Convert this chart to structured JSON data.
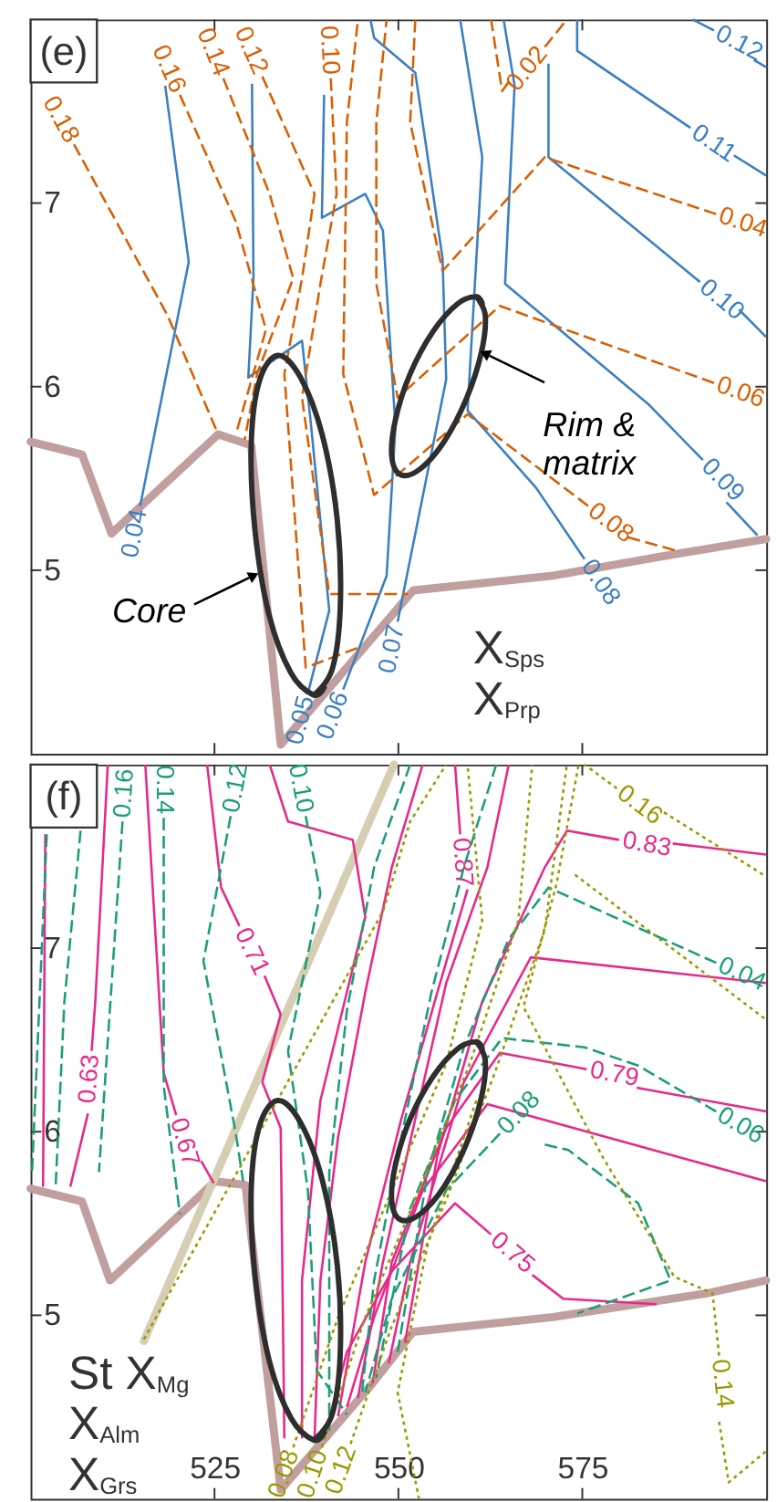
{
  "chart_data": [
    {
      "type": "line",
      "title": "(e)",
      "xlim": [
        500,
        600
      ],
      "ylim": [
        4,
        8
      ],
      "xticks": [
        525,
        550,
        575
      ],
      "yticks": [
        5,
        6,
        7
      ],
      "tick_labels": "y",
      "annotations": [
        {
          "text": "Core",
          "x": 530.8,
          "y": 4.98
        },
        {
          "text": "Rim & matrix",
          "x": 561.3,
          "y": 6.19
        },
        "X$_{Sps}$",
        "X$_{Prp}$"
      ],
      "series": [
        {
          "color": "#c29f9f",
          "x": [
            500,
            507,
            511,
            525.5,
            530,
            534,
            552,
            571,
            585,
            600
          ],
          "values": [
            5.7,
            5.63,
            5.2,
            5.74,
            5.68,
            4.05,
            4.89,
            4.97,
            5.07,
            5.17
          ]
        },
        {
          "name": "0.04",
          "color": "#3b7fc0",
          "line_style": "solid",
          "x": [
            514.9,
            521.5,
            518.3
          ],
          "values": [
            5.35,
            6.68,
            7.64
          ]
        },
        {
          "name": "0.05",
          "color": "#3b7fc0",
          "line_style": "solid",
          "x": [
            537.7,
            540.6,
            538.1,
            536.9,
            529.6,
            530.3,
            530.1
          ],
          "values": [
            4.33,
            4.78,
            5.8,
            6.25,
            6.05,
            6.59,
            7.65
          ]
        },
        {
          "name": "0.06",
          "color": "#3b7fc0",
          "line_style": "solid",
          "x": [
            542.5,
            548.4,
            549.6,
            547.9,
            545.5,
            539.6,
            539.9
          ],
          "values": [
            4.35,
            4.97,
            5.78,
            6.85,
            7.05,
            6.92,
            7.59
          ]
        },
        {
          "name": "0.07",
          "color": "#3b7fc0",
          "line_style": "solid",
          "x": [
            549.9,
            556.5,
            556,
            552.3,
            546.7,
            546.2
          ],
          "values": [
            4.72,
            6.04,
            6.7,
            7.71,
            7.9,
            8
          ]
        },
        {
          "name": "0.08",
          "color": "#3b7fc0",
          "line_style": "solid",
          "x": [
            575.3,
            568.7,
            559.4,
            561.4,
            558.4
          ],
          "values": [
            5.06,
            5.45,
            5.87,
            7.25,
            8
          ]
        },
        {
          "name": "0.09",
          "color": "#3b7fc0",
          "line_style": "solid",
          "x": [
            591.4,
            584.1,
            564.5,
            565.8,
            564.3
          ],
          "values": [
            5.6,
            5.9,
            6.56,
            7.64,
            8
          ]
        },
        {
          "color": "#3b7fc0",
          "line_style": "solid",
          "x": [
            594.6,
            598.8
          ],
          "values": [
            5.37,
            5.19
          ]
        },
        {
          "name": "0.10",
          "color": "#3b7fc0",
          "line_style": "solid",
          "x": [
            591,
            570.4,
            570.4
          ],
          "values": [
            6.57,
            7.25,
            7.76
          ]
        },
        {
          "color": "#3b7fc0",
          "line_style": "solid",
          "x": [
            596.3,
            600
          ],
          "values": [
            6.42,
            6.27
          ]
        },
        {
          "name": "0.11",
          "color": "#3b7fc0",
          "line_style": "solid",
          "x": [
            589.7,
            574.3,
            574.3
          ],
          "values": [
            7.41,
            7.83,
            8
          ]
        },
        {
          "color": "#3b7fc0",
          "line_style": "solid",
          "x": [
            595.6,
            600
          ],
          "values": [
            7.26,
            7.15
          ]
        },
        {
          "name": "0.12",
          "color": "#3b7fc0",
          "line_style": "solid",
          "x": [
            592.9,
            590
          ],
          "values": [
            7.94,
            8
          ]
        },
        {
          "color": "#3b7fc0",
          "line_style": "solid",
          "x": [
            598.3,
            600
          ],
          "values": [
            7.78,
            7.74
          ]
        },
        {
          "name": "0.18",
          "color": "#d95f02",
          "line_style": "dashed",
          "x": [
            505.9,
            518.6,
            525.4
          ],
          "values": [
            7.32,
            6.39,
            5.75
          ]
        },
        {
          "name": "0.16",
          "color": "#d95f02",
          "line_style": "dashed",
          "x": [
            520.3,
            527.9,
            532,
            527.9
          ],
          "values": [
            7.59,
            6.9,
            6.31,
            5.74
          ]
        },
        {
          "name": "0.14",
          "color": "#d95f02",
          "line_style": "dashed",
          "x": [
            526.2,
            532.5,
            535.7,
            530.8,
            529.1
          ],
          "values": [
            7.68,
            7.05,
            6.59,
            6.07,
            5.71
          ]
        },
        {
          "name": "0.12",
          "color": "#d95f02",
          "line_style": "dashed",
          "x": [
            531.5,
            538.6,
            536.9,
            534.5,
            537.4,
            544.7
          ],
          "values": [
            7.69,
            7.05,
            6.59,
            6.07,
            4.47,
            4.58
          ]
        },
        {
          "name": "0.10",
          "color": "#d95f02",
          "line_style": "dashed",
          "x": [
            540.8,
            541.6,
            539.4,
            536.9,
            540.6,
            551.3
          ],
          "values": [
            7.68,
            7.05,
            6.56,
            5.94,
            4.87,
            4.87
          ]
        },
        {
          "name": "0.08",
          "color": "#d95f02",
          "line_style": "dashed",
          "x": [
            575.8,
            559.4,
            546.7,
            542.5,
            543,
            544.5
          ],
          "values": [
            5.35,
            5.85,
            5.41,
            6.07,
            7.44,
            8
          ]
        },
        {
          "color": "#d95f02",
          "line_style": "dashed",
          "x": [
            581.2,
            588.3
          ],
          "values": [
            5.18,
            5.1
          ]
        },
        {
          "name": "0.06",
          "color": "#d95f02",
          "line_style": "dashed",
          "x": [
            592.9,
            563.8,
            549.9,
            547,
            547,
            548.4
          ],
          "values": [
            6.02,
            6.44,
            5.94,
            6.56,
            7.44,
            8
          ]
        },
        {
          "name": "0.04",
          "color": "#d95f02",
          "line_style": "dashed",
          "x": [
            593.2,
            569.9,
            556,
            551.6,
            552.3
          ],
          "values": [
            6.94,
            7.25,
            6.63,
            7.44,
            8
          ]
        },
        {
          "name": "0.02",
          "color": "#d95f02",
          "line_style": "dashed",
          "x": [
            569.9,
            572.9
          ],
          "values": [
            7.85,
            8
          ]
        },
        {
          "color": "#d95f02",
          "line_style": "dashed",
          "x": [
            565,
            564.1,
            562.6
          ],
          "values": [
            7.66,
            7.61,
            8
          ]
        },
        {
          "color": "#2e2e2e",
          "x": [
            538.5,
            541,
            542.1,
            541.7,
            539.7,
            536.7,
            533.6,
            531.1,
            530,
            530.5,
            532.4,
            535.4,
            538.5,
            539.9
          ],
          "values": [
            4.32,
            4.46,
            4.8,
            5.27,
            5.73,
            6.05,
            6.17,
            6.03,
            5.69,
            5.22,
            4.76,
            4.44,
            4.32,
            4.36
          ]
        },
        {
          "color": "#2e2e2e",
          "x": [
            560.6,
            561.8,
            561.3,
            559.3,
            556.2,
            552.9,
            550.3,
            549.1,
            549.6,
            551.6,
            554.7,
            558,
            560.6,
            561.4
          ],
          "values": [
            6.49,
            6.39,
            6.19,
            5.94,
            5.7,
            5.55,
            5.52,
            5.62,
            5.82,
            6.07,
            6.3,
            6.45,
            6.49,
            6.45
          ]
        }
      ]
    },
    {
      "type": "line",
      "title": "(f)",
      "xlim": [
        500,
        600
      ],
      "ylim": [
        4,
        8
      ],
      "xticks": [
        525,
        550,
        575
      ],
      "yticks": [
        5,
        6,
        7
      ],
      "annotations": [
        "St X$_{Mg}$",
        "X$_{Alm}$",
        "X$_{Grs}$"
      ],
      "series": [
        {
          "color": "#c29f9f",
          "x": [
            500,
            507,
            510.8,
            525.1,
            529.2,
            534,
            546.5,
            552,
            571,
            592,
            600
          ],
          "values": [
            5.69,
            5.62,
            5.19,
            5.73,
            5.71,
            4.05,
            4.63,
            4.91,
            4.99,
            5.12,
            5.19
          ]
        },
        {
          "color": "#d6ceb2",
          "x": [
            515.4,
            549.4
          ],
          "values": [
            4.86,
            8
          ]
        },
        {
          "color": "#e7298a",
          "line_style": "solid",
          "x": [
            502,
            501.7
          ],
          "values": [
            7.62,
            5.7
          ]
        },
        {
          "name": "0.63",
          "color": "#e7298a",
          "line_style": "solid",
          "x": [
            508.3,
            508.8,
            510.5
          ],
          "values": [
            6.44,
            6.71,
            8
          ]
        },
        {
          "color": "#e7298a",
          "line_style": "solid",
          "x": [
            507.8,
            505.4
          ],
          "values": [
            6.1,
            5.7
          ]
        },
        {
          "name": "0.67",
          "color": "#e7298a",
          "line_style": "solid",
          "x": [
            519.8,
            518.1,
            515.6
          ],
          "values": [
            6.09,
            6.32,
            8
          ]
        },
        {
          "color": "#e7298a",
          "line_style": "solid",
          "x": [
            523.2,
            524.9
          ],
          "values": [
            5.84,
            5.72
          ]
        },
        {
          "name": "0.71",
          "color": "#e7298a",
          "line_style": "solid",
          "x": [
            528.4,
            525.9,
            524
          ],
          "values": [
            7.12,
            7.33,
            8
          ]
        },
        {
          "color": "#e7298a",
          "line_style": "solid",
          "x": [
            531.8,
            534,
            531.5,
            534,
            534.5
          ],
          "values": [
            6.85,
            6.64,
            6.27,
            6.02,
            4.33
          ]
        },
        {
          "color": "#e7298a",
          "line_style": "solid",
          "x": [
            532.5,
            535,
            543.8,
            545.5,
            539.4,
            536.9,
            536.9
          ],
          "values": [
            8,
            7.69,
            7.59,
            7.17,
            6.17,
            5.19,
            4.33
          ]
        },
        {
          "color": "#e7298a",
          "line_style": "solid",
          "x": [
            553.3,
            549.1,
            545.5,
            541.8,
            539.4,
            538.6
          ],
          "values": [
            8,
            7.44,
            6.76,
            5.97,
            5.19,
            4.33
          ]
        },
        {
          "name": "0.87",
          "color": "#e7298a",
          "line_style": "solid",
          "x": [
            558.4,
            557.7
          ],
          "values": [
            7.62,
            8
          ]
        },
        {
          "color": "#e7298a",
          "line_style": "solid",
          "x": [
            559.4,
            555.3,
            550.4,
            545.5,
            541.8
          ],
          "values": [
            7.32,
            6.76,
            6.07,
            5.29,
            4.45
          ]
        },
        {
          "color": "#e7298a",
          "line_style": "solid",
          "x": [
            565,
            562.1,
            556.5,
            552.3,
            547.9,
            544.5
          ],
          "values": [
            8,
            7.44,
            6.81,
            6.07,
            5.29,
            4.55
          ]
        },
        {
          "name": "0.75",
          "color": "#e7298a",
          "line_style": "solid",
          "x": [
            562.6,
            557.7,
            549.1,
            543,
            540.1
          ],
          "values": [
            5.44,
            5.61,
            5.24,
            4.8,
            4.36
          ]
        },
        {
          "color": "#e7298a",
          "line_style": "solid",
          "x": [
            568.2,
            572.4,
            585.1
          ],
          "values": [
            5.22,
            5.09,
            5.06
          ]
        },
        {
          "color": "#e7298a",
          "line_style": "solid",
          "x": [
            600,
            562.1,
            553.3,
            546.7,
            543
          ],
          "values": [
            5.73,
            6.15,
            5.68,
            4.99,
            4.5
          ]
        },
        {
          "name": "0.79",
          "color": "#e7298a",
          "line_style": "solid",
          "x": [
            575.6,
            563.8,
            556.5,
            549.1,
            546.5
          ],
          "values": [
            6.34,
            6.43,
            6.02,
            5.29,
            4.63
          ]
        },
        {
          "color": "#e7298a",
          "line_style": "solid",
          "x": [
            582.4,
            600
          ],
          "values": [
            6.24,
            6.11
          ]
        },
        {
          "color": "#e7298a",
          "line_style": "solid",
          "x": [
            600,
            568,
            558.9,
            551.6,
            548.7
          ],
          "values": [
            6.81,
            6.95,
            6.27,
            5.29,
            4.74
          ]
        },
        {
          "name": "0.83",
          "color": "#e7298a",
          "line_style": "solid",
          "x": [
            580,
            572.9,
            569.9,
            561.4,
            555.3,
            550.9
          ],
          "values": [
            7.59,
            7.64,
            7.44,
            6.71,
            5.87,
            4.85
          ]
        },
        {
          "color": "#e7298a",
          "line_style": "solid",
          "x": [
            587.3,
            600
          ],
          "values": [
            7.57,
            7.51
          ]
        },
        {
          "color": "#1b9e77",
          "line_style": "dashed",
          "x": [
            502.2,
            500.2
          ],
          "values": [
            7.62,
            5.78
          ]
        },
        {
          "color": "#1b9e77",
          "line_style": "dashed",
          "x": [
            506.8,
            504.6,
            503.4
          ],
          "values": [
            7.64,
            6.71,
            5.7
          ]
        },
        {
          "name": "0.16",
          "color": "#1b9e77",
          "line_style": "dashed",
          "x": [
            512.5,
            509.3
          ],
          "values": [
            7.69,
            5.78
          ]
        },
        {
          "name": "0.14",
          "color": "#1b9e77",
          "line_style": "dashed",
          "x": [
            518.1,
            518.1,
            520.3
          ],
          "values": [
            7.71,
            6.25,
            5.55
          ]
        },
        {
          "name": "0.12",
          "color": "#1b9e77",
          "line_style": "dashed",
          "x": [
            527.2,
            523.5,
            527.9,
            528.9
          ],
          "values": [
            7.72,
            6.93,
            5.99,
            5.73
          ]
        },
        {
          "name": "0.10",
          "color": "#1b9e77",
          "line_style": "dashed",
          "x": [
            537.4,
            539.4,
            535,
            537.7,
            538.9,
            543
          ],
          "values": [
            7.72,
            7.3,
            6.44,
            5.68,
            4.7,
            4.46
          ]
        },
        {
          "color": "#1b9e77",
          "line_style": "dashed",
          "x": [
            551.6,
            546.7,
            543,
            540.6,
            540.6
          ],
          "values": [
            8,
            7.44,
            6.66,
            5.78,
            4.37
          ]
        },
        {
          "color": "#1b9e77",
          "line_style": "dashed",
          "x": [
            563.3,
            558.9,
            554.5,
            550.4,
            546.7,
            545
          ],
          "values": [
            8,
            7.44,
            6.76,
            5.97,
            5.19,
            4.56
          ]
        },
        {
          "name": "0.08",
          "color": "#1b9e77",
          "line_style": "dashed",
          "x": [
            563.8,
            556.5,
            549.1,
            545.5
          ],
          "values": [
            5.99,
            5.68,
            5.09,
            4.58
          ]
        },
        {
          "color": "#1b9e77",
          "line_style": "dashed",
          "x": [
            569.9,
            573.1,
            582.6,
            587,
            574.3
          ],
          "values": [
            5.93,
            5.9,
            5.61,
            5.19,
            5.01
          ]
        },
        {
          "name": "0.06",
          "color": "#1b9e77",
          "line_style": "dashed",
          "x": [
            593.2,
            582.6,
            575.3,
            564.1,
            557.7,
            551.6,
            547
          ],
          "values": [
            6.11,
            6.36,
            6.46,
            6.51,
            6.17,
            5.58,
            4.66
          ]
        },
        {
          "name": "0.04",
          "color": "#1b9e77",
          "line_style": "dashed",
          "x": [
            593.2,
            570.4,
            565,
            558.9,
            554,
            549.9
          ],
          "values": [
            6.92,
            7.33,
            7.05,
            6.46,
            5.78,
            4.8
          ]
        },
        {
          "name": "0.16",
          "color": "#999900",
          "line_style": "dotted",
          "x": [
            579.7,
            575.3
          ],
          "values": [
            7.87,
            8
          ]
        },
        {
          "color": "#999900",
          "line_style": "dotted",
          "x": [
            586.1,
            600
          ],
          "values": [
            7.74,
            7.39
          ]
        },
        {
          "name": "0.14",
          "color": "#999900",
          "line_style": "dotted",
          "x": [
            593.6,
            592.7,
            587.5,
            577.8,
            567,
            571.5,
            574.5
          ],
          "values": [
            4.78,
            5.12,
            5.21,
            5.86,
            6.68,
            7.35,
            8
          ]
        },
        {
          "color": "#999900",
          "line_style": "dotted",
          "x": [
            593.6,
            594.9,
            600
          ],
          "values": [
            4.42,
            4.09,
            4.26
          ]
        },
        {
          "color": "#999900",
          "line_style": "dotted",
          "x": [
            515.4,
            547.9,
            551.6,
            556.5
          ],
          "values": [
            4.87,
            7.2,
            7.69,
            8
          ]
        },
        {
          "name": "0.08",
          "color": "#999900",
          "line_style": "dotted",
          "x": [
            535.7,
            541.8,
            549.1,
            556.5,
            561.4,
            559.4
          ],
          "values": [
            4.28,
            4.99,
            5.68,
            6.37,
            7.15,
            8
          ]
        },
        {
          "name": "0.10",
          "color": "#999900",
          "line_style": "dotted",
          "x": [
            539.6,
            545.5,
            552.8,
            559.7,
            566.3,
            568.2
          ],
          "values": [
            4.28,
            4.99,
            5.68,
            6.37,
            7.15,
            8
          ]
        },
        {
          "name": "0.12",
          "color": "#999900",
          "line_style": "dotted",
          "x": [
            543.5,
            549.1,
            556.5,
            563.1,
            569.9,
            572.9
          ],
          "values": [
            4.3,
            4.94,
            5.63,
            6.32,
            7.1,
            8
          ]
        },
        {
          "color": "#999900",
          "line_style": "dotted",
          "x": [
            560.6,
            554,
            549.9,
            552.8
          ],
          "values": [
            6.17,
            5.39,
            4.58,
            4
          ]
        },
        {
          "color": "#999900",
          "line_style": "dotted",
          "x": [
            574,
            600
          ],
          "values": [
            7.4,
            6.61
          ]
        },
        {
          "color": "#2e2e2e",
          "x": [
            538.5,
            541,
            542.1,
            541.7,
            539.7,
            536.7,
            533.6,
            531.1,
            530,
            530.5,
            532.4,
            535.4,
            538.5,
            539.9
          ],
          "values": [
            4.32,
            4.46,
            4.8,
            5.27,
            5.73,
            6.05,
            6.17,
            6.03,
            5.69,
            5.22,
            4.76,
            4.44,
            4.32,
            4.36
          ]
        },
        {
          "color": "#2e2e2e",
          "x": [
            560.6,
            561.8,
            561.3,
            559.3,
            556.2,
            552.9,
            550.3,
            549.1,
            549.6,
            551.6,
            554.7,
            558,
            560.6,
            561.4
          ],
          "values": [
            6.49,
            6.39,
            6.19,
            5.94,
            5.7,
            5.55,
            5.52,
            5.62,
            5.82,
            6.07,
            6.3,
            6.45,
            6.49,
            6.45
          ]
        }
      ]
    }
  ]
}
